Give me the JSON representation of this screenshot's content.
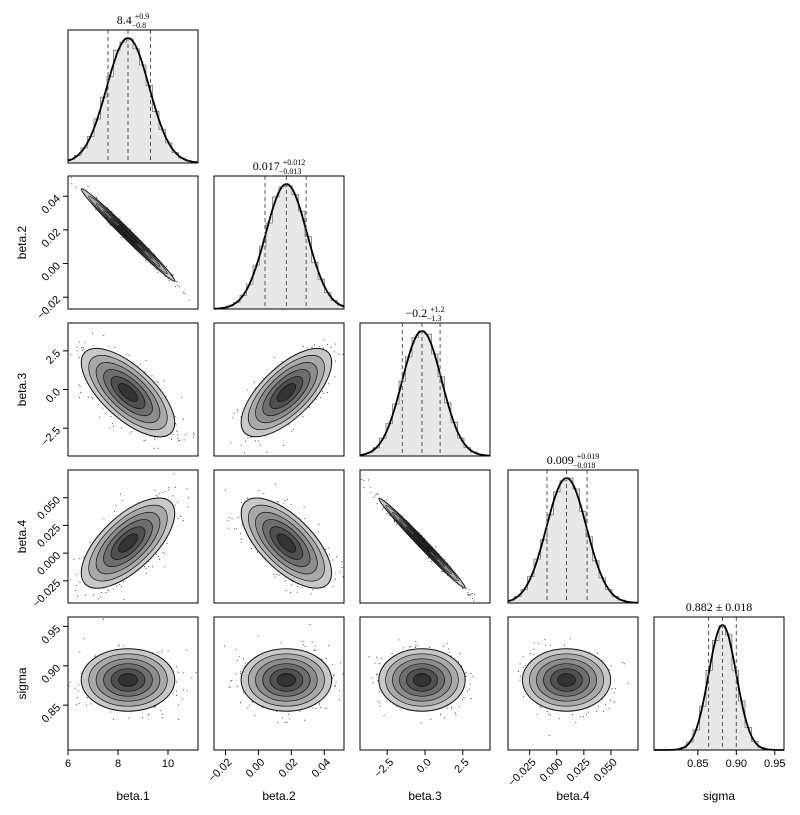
{
  "chart_data": {
    "type": "corner",
    "parameters": [
      "beta.1",
      "beta.2",
      "beta.3",
      "beta.4",
      "sigma"
    ],
    "ranges": [
      [
        6.0,
        11.2
      ],
      [
        -0.027,
        0.052
      ],
      [
        -4.3,
        4.3
      ],
      [
        -0.045,
        0.075
      ],
      [
        0.793,
        0.962
      ]
    ],
    "means": [
      8.4,
      0.017,
      -0.2,
      0.009,
      0.882
    ],
    "sds": [
      0.85,
      0.0125,
      1.3,
      0.0185,
      0.018
    ],
    "quantile_lines": [
      [
        7.6,
        8.4,
        9.3
      ],
      [
        0.004,
        0.017,
        0.029
      ],
      [
        -1.5,
        -0.2,
        1.0
      ],
      [
        -0.009,
        0.009,
        0.028
      ],
      [
        0.864,
        0.882,
        0.9
      ]
    ],
    "correlations": [
      [
        1,
        -0.99,
        -0.68,
        0.66,
        0
      ],
      [
        -0.99,
        1,
        0.68,
        -0.66,
        0
      ],
      [
        -0.68,
        0.68,
        1,
        -0.99,
        0
      ],
      [
        0.66,
        -0.66,
        -0.99,
        1,
        0
      ],
      [
        0,
        0,
        0,
        0,
        1
      ]
    ],
    "titles": [
      {
        "value": "8.4",
        "plus": "+0.9",
        "minus": "−0.8"
      },
      {
        "value": "0.017",
        "plus": "+0.012",
        "minus": "−0.013"
      },
      {
        "value": "−0.2",
        "plus": "+1.2",
        "minus": "−1.3"
      },
      {
        "value": "0.009",
        "plus": "+0.019",
        "minus": "−0.018"
      },
      {
        "value": "0.882",
        "pm": "± 0.018"
      }
    ],
    "x_ticks": [
      {
        "values": [
          6,
          8,
          10
        ],
        "labels": [
          "6",
          "8",
          "10"
        ]
      },
      {
        "values": [
          -0.02,
          0.0,
          0.02,
          0.04
        ],
        "labels": [
          "−0.02",
          "0.00",
          "0.02",
          "0.04"
        ]
      },
      {
        "values": [
          -2.5,
          0.0,
          2.5
        ],
        "labels": [
          "−2.5",
          "0.0",
          "2.5"
        ]
      },
      {
        "values": [
          -0.025,
          0.0,
          0.025,
          0.05
        ],
        "labels": [
          "−0.025",
          "0.000",
          "0.025",
          "0.050"
        ]
      },
      {
        "values": [
          0.85,
          0.9,
          0.95
        ],
        "labels": [
          "0.85",
          "0.90",
          "0.95"
        ]
      }
    ],
    "y_ticks": [
      null,
      {
        "values": [
          -0.02,
          0.0,
          0.02,
          0.04
        ],
        "labels": [
          "−0.02",
          "0.00",
          "0.02",
          "0.04"
        ]
      },
      {
        "values": [
          -2.5,
          0.0,
          2.5
        ],
        "labels": [
          "−2.5",
          "0.0",
          "2.5"
        ]
      },
      {
        "values": [
          -0.025,
          0.0,
          0.025,
          0.05
        ],
        "labels": [
          "−0.025",
          "0.000",
          "0.025",
          "0.050"
        ]
      },
      {
        "values": [
          0.85,
          0.9,
          0.95
        ],
        "labels": [
          "0.85",
          "0.90",
          "0.95"
        ]
      }
    ],
    "xlabels": [
      "beta.1",
      "beta.2",
      "beta.3",
      "beta.4",
      "sigma"
    ],
    "ylabels": [
      null,
      "beta.2",
      "beta.3",
      "beta.4",
      "sigma"
    ],
    "histogram_bins": 20,
    "colors": {
      "line": "#000000",
      "fill": "#e8e8e8",
      "dashed": "#555555"
    }
  }
}
